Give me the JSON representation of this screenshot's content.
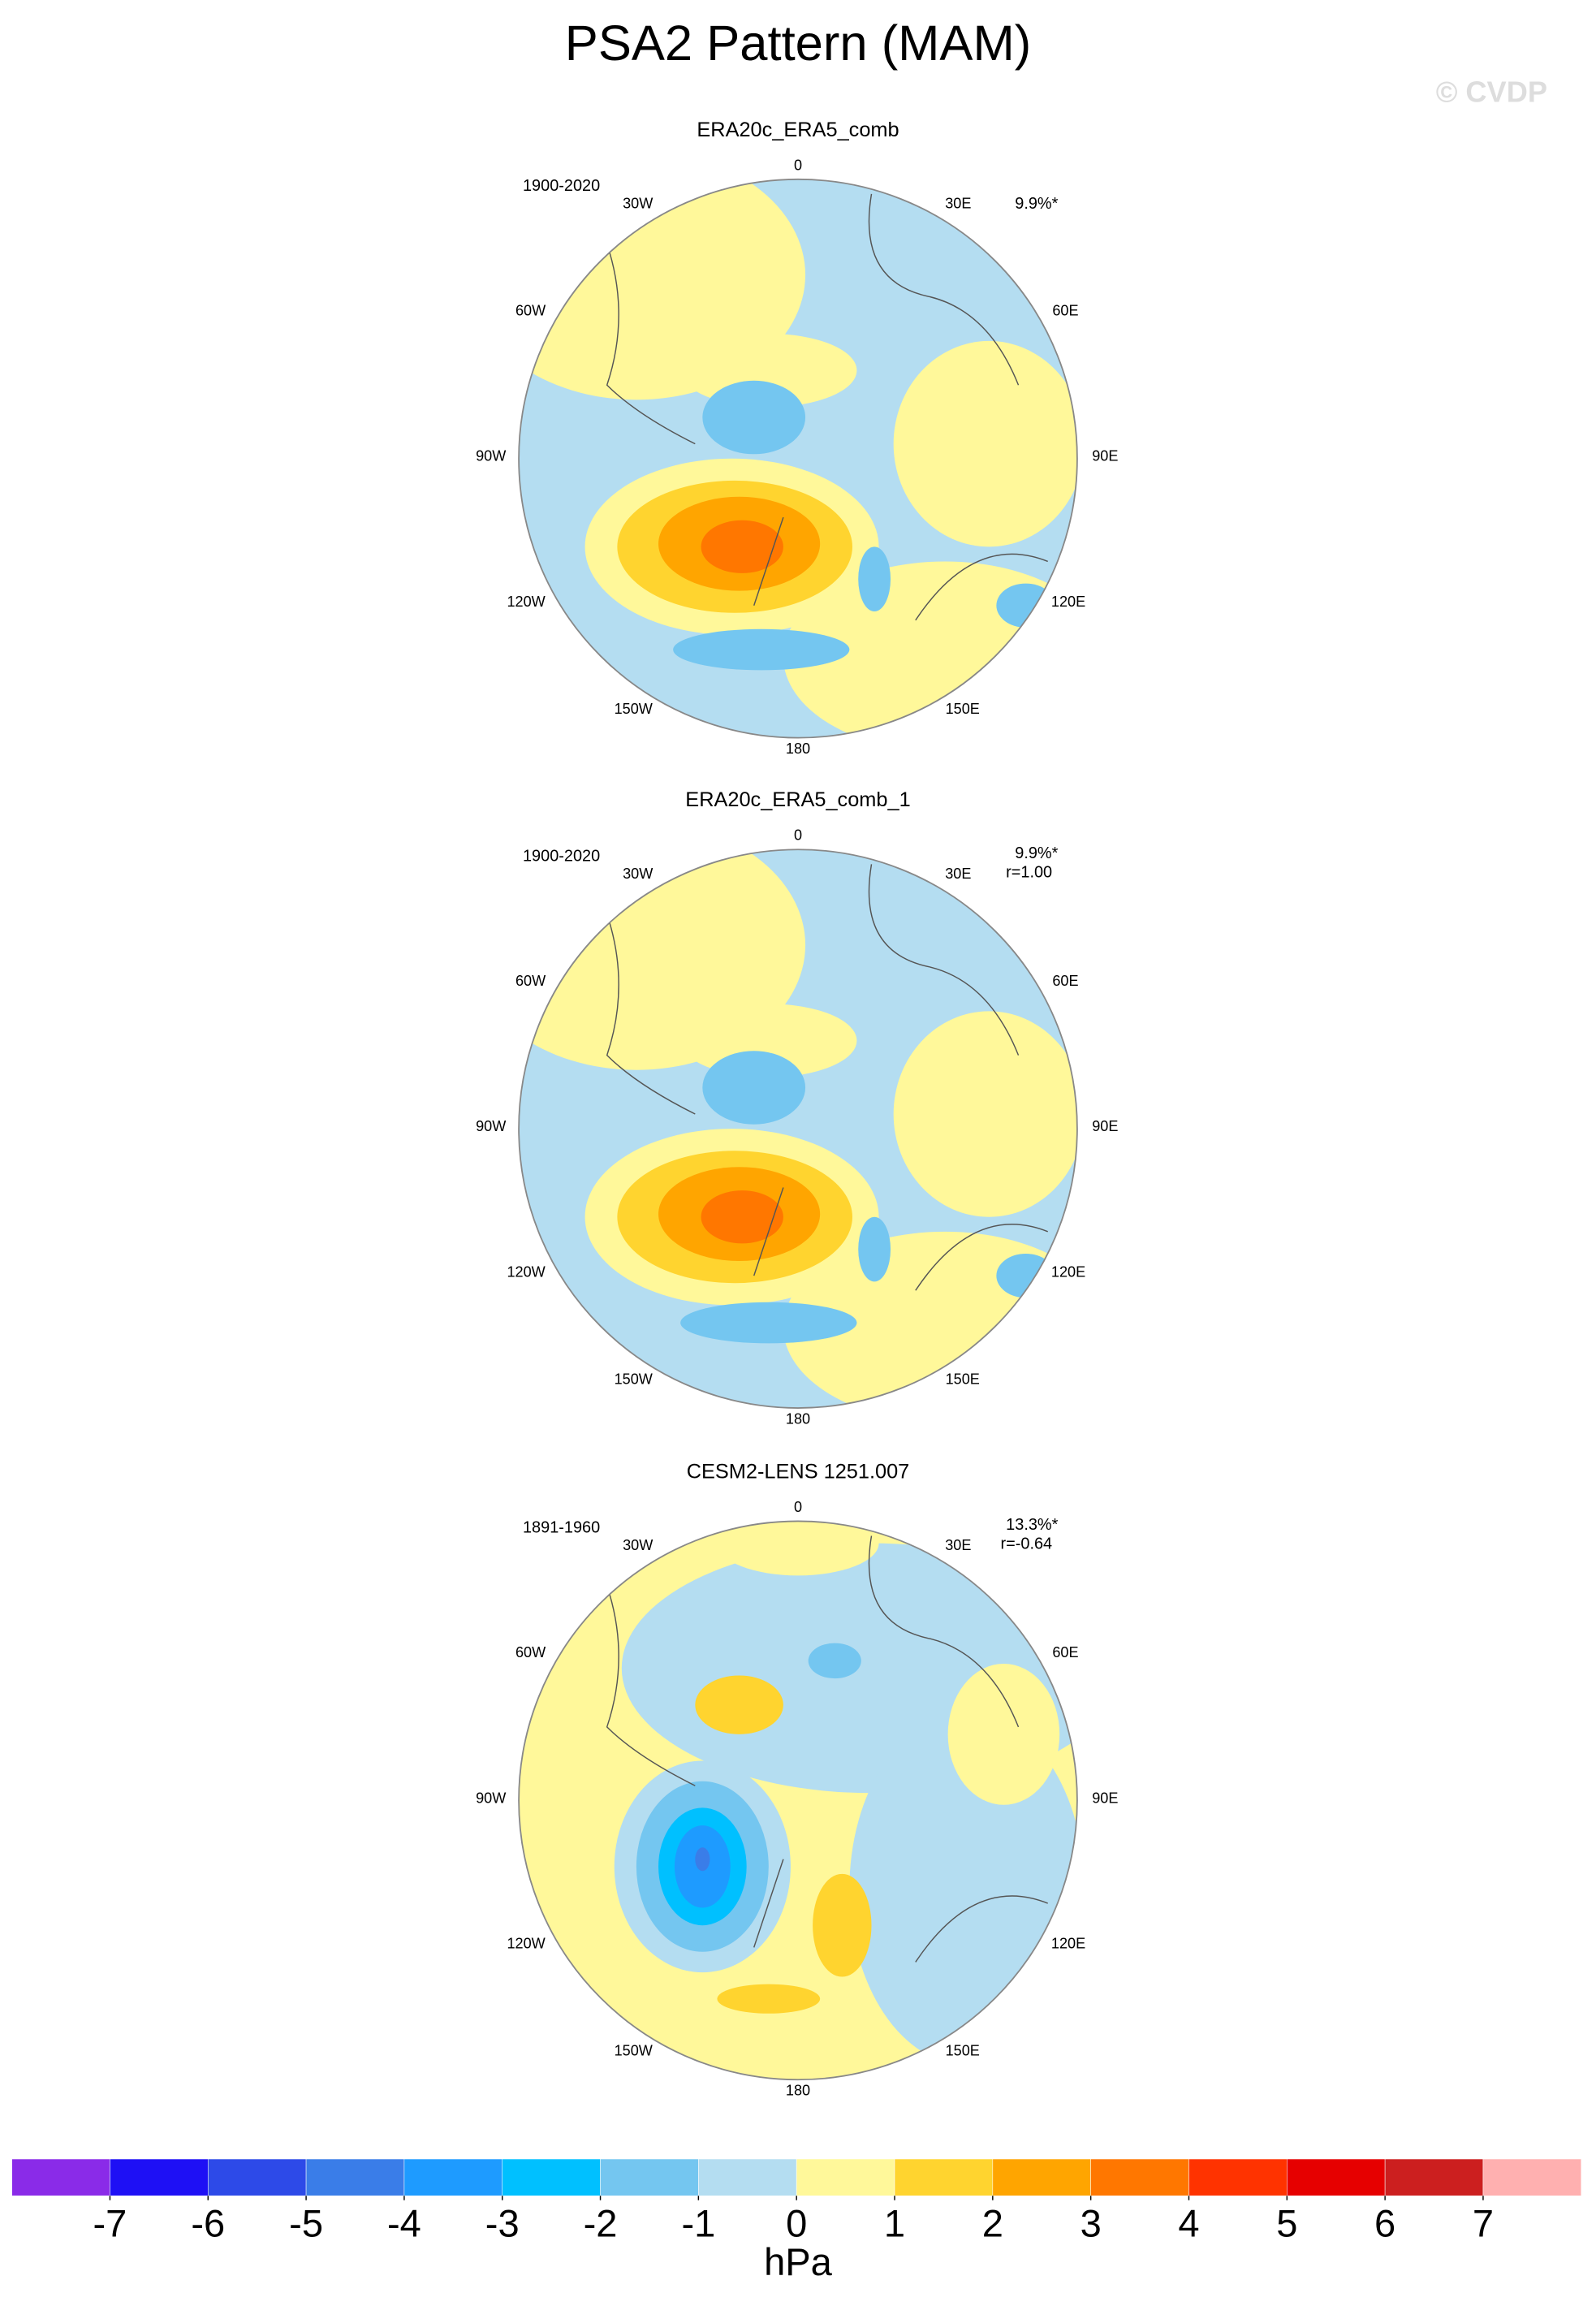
{
  "title": "PSA2 Pattern (MAM)",
  "credit": "© CVDP",
  "panels": [
    {
      "title": "ERA20c_ERA5_comb",
      "period": "1900-2020",
      "stats": [
        "9.9%*"
      ]
    },
    {
      "title": "ERA20c_ERA5_comb_1",
      "period": "1900-2020",
      "stats": [
        "9.9%*",
        "r=1.00"
      ]
    },
    {
      "title": "CESM2-LENS 1251.007",
      "period": "1891-1960",
      "stats": [
        "13.3%*",
        "r=-0.64"
      ]
    }
  ],
  "longitude_labels": [
    "0",
    "30E",
    "60E",
    "90E",
    "120E",
    "150E",
    "180",
    "150W",
    "120W",
    "90W",
    "60W",
    "30W"
  ],
  "colorbar": {
    "ticks": [
      -7,
      -6,
      -5,
      -4,
      -3,
      -2,
      -1,
      0,
      1,
      2,
      3,
      4,
      5,
      6,
      7
    ],
    "colors": [
      "#8a2be8",
      "#1e10f5",
      "#2d4ae8",
      "#3a7de8",
      "#1e9bff",
      "#00c0ff",
      "#74c6f0",
      "#b4ddf1",
      "#fff89a",
      "#ffd42f",
      "#ffa500",
      "#ff7700",
      "#ff3300",
      "#e60000",
      "#cc1f1f",
      "#ffb0b0"
    ],
    "label": "hPa"
  }
}
